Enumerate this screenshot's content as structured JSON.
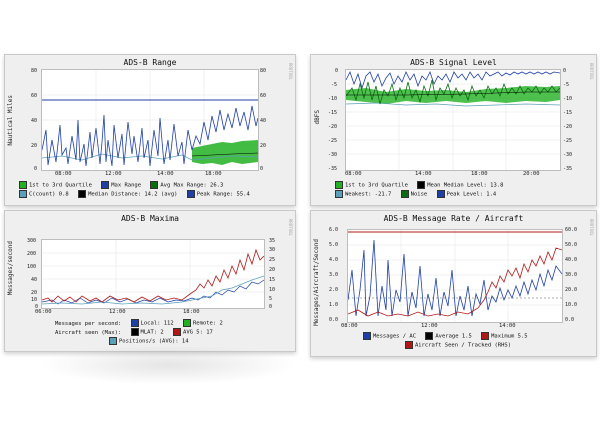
{
  "colors": {
    "panel_bg": "#efefef",
    "plot_bg": "#ffffff",
    "blue": "#1f3fa6",
    "green": "#22b022",
    "dark_green": "#0c6b10",
    "teal": "#5aa0b8",
    "red": "#b01818",
    "black": "#000000"
  },
  "panels": {
    "range": {
      "title": "ADS-B Range",
      "ylabel": "Nautical Miles",
      "yticks_left": [
        "80",
        "60",
        "40",
        "20",
        "0"
      ],
      "yticks_right": [
        "80",
        "60",
        "40",
        "20",
        "0"
      ],
      "xticks": [
        "08:00",
        "12:00",
        "14:00",
        "18:00"
      ],
      "legend": [
        {
          "color": "#22b022",
          "label": "1st to 3rd Quartile"
        },
        {
          "color": "#1f3fa6",
          "label": "Max Range"
        },
        {
          "color": "#0c6b10",
          "label": "Avg Max Range:  26.3"
        },
        {
          "color": "#5aa0b8",
          "label": "C(count)      0.8"
        },
        {
          "color": "#000000",
          "label": "Median Distance:  14.2 (avg)"
        },
        {
          "color": "#1f3fa6",
          "label": "Peak Range:   55.4"
        }
      ]
    },
    "signal": {
      "title": "ADS-B Signal Level",
      "ylabel": "dBFS",
      "yticks_left": [
        "0",
        "-5",
        "-10",
        "-15",
        "-20",
        "-25",
        "-30",
        "-35"
      ],
      "yticks_right": [
        "0",
        "-5",
        "-10",
        "-15",
        "-20",
        "-25",
        "-30",
        "-35"
      ],
      "xticks": [
        "08:00",
        "14:00",
        "18:00",
        "20:00"
      ],
      "legend": [
        {
          "color": "#22b022",
          "label": "1st to 3rd Quartile"
        },
        {
          "color": "#000000",
          "label": "Mean Median Level:  13.8"
        },
        {
          "color": "#5aa0b8",
          "label": "Weakest:   -21.7"
        },
        {
          "color": "#0c6b10",
          "label": "Noise"
        },
        {
          "color": "#1f3fa6",
          "label": "Peak Level:   1.4"
        }
      ]
    },
    "maxima": {
      "title": "ADS-B Maxima",
      "ylabel": "Messages/second",
      "yticks_left": [
        "300",
        "200",
        "100",
        "40",
        "20",
        "10",
        "0"
      ],
      "yticks_right": [
        "35",
        "30",
        "25",
        "20",
        "15",
        "10",
        "5",
        "0"
      ],
      "xticks": [
        "06:00",
        "12:00",
        "18:00"
      ],
      "legend_rows": [
        [
          "Messages per second:",
          "Local: 112",
          "Remote: 2"
        ],
        [
          "Aircraft seen (Max):",
          "MLAT: 2",
          "AVG 5: 17"
        ],
        [
          "Positions/s (AVG): 14"
        ]
      ]
    },
    "msgrate": {
      "title": "ADS-B Message Rate / Aircraft",
      "ylabel": "Messages/Aircraft/Second",
      "yticks_left": [
        "6.0",
        "5.0",
        "4.0",
        "3.0",
        "2.0",
        "1.0",
        "0.0"
      ],
      "yticks_right": [
        "60.0",
        "50.0",
        "40.0",
        "30.0",
        "20.0",
        "10.0",
        "0.0"
      ],
      "xticks": [
        "08:00",
        "12:00",
        "14:00"
      ],
      "legend_rows": [
        [
          "Messages / AC",
          "Average  1.5",
          "Maximum  5.5"
        ],
        [
          "Aircraft Seen / Tracked (RHS)"
        ]
      ]
    }
  }
}
